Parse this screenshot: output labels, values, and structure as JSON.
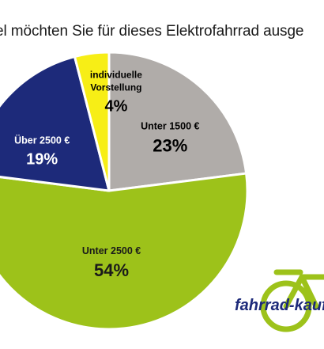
{
  "chart_data": {
    "type": "pie",
    "title": "el möchten Sie für dieses Elektrofahrrad ausge",
    "slices": [
      {
        "label": "Unter 1500 €",
        "value": 23,
        "value_label": "23%",
        "color": "#b0aca9",
        "text_color": "#000000"
      },
      {
        "label": "Unter 2500 €",
        "value": 54,
        "value_label": "54%",
        "color": "#9dc21a",
        "text_color": "#1a1a1a"
      },
      {
        "label": "Über 2500 €",
        "value": 19,
        "value_label": "19%",
        "color": "#1d2a7a",
        "text_color": "#ffffff"
      },
      {
        "label_lines": [
          "individuelle",
          "Vorstellung"
        ],
        "value": 4,
        "value_label": "4%",
        "color": "#f7ee16",
        "text_color": "#000000"
      }
    ]
  },
  "logo": {
    "text": "fahrrad-kauf",
    "color": "#9dc21a",
    "text_color": "#1d2a7a"
  }
}
